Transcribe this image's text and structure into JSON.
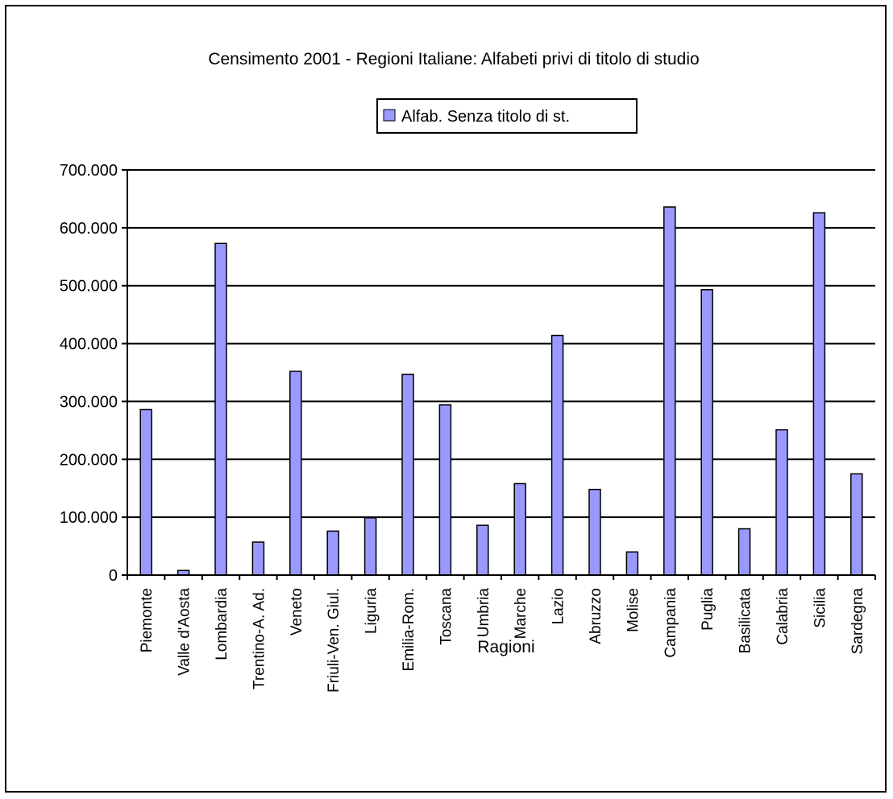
{
  "chart_data": {
    "type": "bar",
    "title": "Censimento 2001 - Regioni Italiane: Alfabeti privi di titolo di studio",
    "xlabel": "Ragioni",
    "ylabel": "",
    "ylim": [
      0,
      700000
    ],
    "yticks": [
      0,
      100000,
      200000,
      300000,
      400000,
      500000,
      600000,
      700000
    ],
    "ytick_labels": [
      "0",
      "100.000",
      "200.000",
      "300.000",
      "400.000",
      "500.000",
      "600.000",
      "700.000"
    ],
    "grid": true,
    "legend_position": "top-center",
    "categories": [
      "Piemonte",
      "Valle d'Aosta",
      "Lombardia",
      "Trentino-A. Ad.",
      "Veneto",
      "Friuli-Ven. Giul.",
      "Liguria",
      "Emilia-Rom.",
      "Toscana",
      "Umbria",
      "Marche",
      "Lazio",
      "Abruzzo",
      "Molise",
      "Campania",
      "Puglia",
      "Basilicata",
      "Calabria",
      "Sicilia",
      "Sardegna"
    ],
    "series": [
      {
        "name": "Alfab. Senza titolo di st.",
        "color": "#9999ff",
        "values": [
          286000,
          8000,
          573000,
          57000,
          352000,
          76000,
          99000,
          347000,
          294000,
          86000,
          158000,
          414000,
          148000,
          40000,
          636000,
          493000,
          80000,
          251000,
          626000,
          175000
        ]
      }
    ]
  }
}
